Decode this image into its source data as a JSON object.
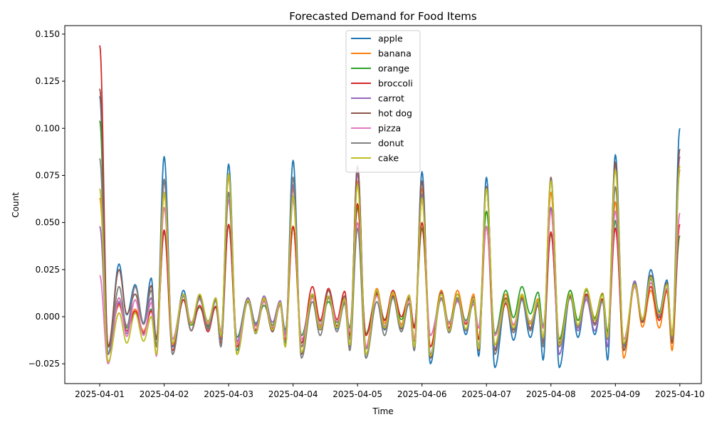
{
  "chart_data": {
    "type": "line",
    "title": "Forecasted Demand for Food Items",
    "xlabel": "Time",
    "ylabel": "Count",
    "xlim": [
      "2025-03-31T11:00",
      "2025-04-10T08:00"
    ],
    "ylim": [
      -0.0355,
      0.1545
    ],
    "x_ticks": [
      "2025-04-01",
      "2025-04-02",
      "2025-04-03",
      "2025-04-04",
      "2025-04-05",
      "2025-04-06",
      "2025-04-07",
      "2025-04-08",
      "2025-04-09",
      "2025-04-10"
    ],
    "y_ticks": [
      -0.025,
      0.0,
      0.025,
      0.05,
      0.075,
      0.1,
      0.125,
      0.15
    ],
    "y_tick_labels": [
      "−0.025",
      "0.000",
      "0.025",
      "0.050",
      "0.075",
      "0.100",
      "0.125",
      "0.150"
    ],
    "grid": false,
    "legend_position": "top-center",
    "series": [
      {
        "name": "apple",
        "color": "#1f77b4",
        "start": 0.117,
        "end": 0.1,
        "peaks": [
          0.085,
          0.081,
          0.083,
          0.08,
          0.077,
          0.074,
          0.073,
          0.086
        ],
        "mins": [
          -0.02,
          -0.016,
          -0.018,
          -0.02,
          -0.022,
          -0.025,
          -0.027,
          -0.027,
          -0.016
        ],
        "m1": [
          0.028,
          0.014,
          0.009,
          0.012,
          0.014,
          0.014,
          0.008,
          0.011,
          0.018
        ],
        "m2": [
          0.017,
          0.01,
          0.01,
          0.011,
          0.01,
          0.01,
          0.009,
          0.012,
          0.025
        ]
      },
      {
        "name": "banana",
        "color": "#ff7f0e",
        "start": 0.063,
        "end": 0.055,
        "peaks": [
          0.065,
          0.074,
          0.068,
          0.072,
          0.068,
          0.069,
          0.066,
          0.061
        ],
        "mins": [
          -0.015,
          -0.015,
          -0.014,
          -0.016,
          -0.016,
          -0.016,
          -0.015,
          -0.012,
          -0.022
        ],
        "m1": [
          0.006,
          0.012,
          0.01,
          0.012,
          0.015,
          0.014,
          0.012,
          0.014,
          0.017
        ],
        "m2": [
          0.004,
          0.011,
          0.009,
          0.01,
          0.012,
          0.014,
          0.011,
          0.015,
          0.014
        ]
      },
      {
        "name": "orange",
        "color": "#2ca02c",
        "start": 0.104,
        "end": 0.043,
        "peaks": [
          0.045,
          0.049,
          0.048,
          0.058,
          0.047,
          0.056,
          0.044,
          0.051
        ],
        "mins": [
          -0.016,
          -0.012,
          -0.011,
          -0.01,
          -0.009,
          -0.01,
          -0.009,
          -0.012,
          -0.015
        ],
        "m1": [
          0.01,
          0.009,
          0.01,
          0.011,
          0.012,
          0.01,
          0.014,
          0.014,
          0.016
        ],
        "m2": [
          0.002,
          0.005,
          0.006,
          0.008,
          0.01,
          0.01,
          0.016,
          0.014,
          0.018
        ]
      },
      {
        "name": "broccoli",
        "color": "#d62728",
        "start": 0.144,
        "end": 0.049,
        "peaks": [
          0.046,
          0.049,
          0.048,
          0.06,
          0.05,
          0.048,
          0.045,
          0.047
        ],
        "mins": [
          -0.016,
          -0.018,
          -0.016,
          -0.014,
          -0.01,
          -0.016,
          -0.018,
          -0.015,
          -0.016
        ],
        "m1": [
          0.007,
          0.009,
          0.008,
          0.016,
          0.012,
          0.01,
          0.007,
          0.011,
          0.016
        ],
        "m2": [
          0.003,
          0.006,
          0.008,
          0.015,
          0.014,
          0.012,
          0.009,
          0.012,
          0.016
        ]
      },
      {
        "name": "carrot",
        "color": "#9467bd",
        "start": 0.048,
        "end": 0.085,
        "peaks": [
          0.072,
          0.066,
          0.07,
          0.076,
          0.072,
          0.069,
          0.058,
          0.081
        ],
        "mins": [
          -0.02,
          -0.012,
          -0.013,
          -0.016,
          -0.017,
          -0.02,
          -0.017,
          -0.02,
          -0.016
        ],
        "m1": [
          0.008,
          0.011,
          0.01,
          0.01,
          0.013,
          0.012,
          0.009,
          0.011,
          0.019
        ],
        "m2": [
          0.016,
          0.011,
          0.011,
          0.01,
          0.011,
          0.009,
          0.009,
          0.009,
          0.02
        ]
      },
      {
        "name": "hot dog",
        "color": "#8c564b",
        "start": 0.121,
        "end": 0.089,
        "peaks": [
          0.073,
          0.066,
          0.074,
          0.08,
          0.072,
          0.069,
          0.074,
          0.082
        ],
        "mins": [
          -0.016,
          -0.02,
          -0.02,
          -0.02,
          -0.02,
          -0.022,
          -0.018,
          -0.014,
          -0.018
        ],
        "m1": [
          0.025,
          0.011,
          0.009,
          0.012,
          0.013,
          0.013,
          0.01,
          0.011,
          0.018
        ],
        "m2": [
          0.012,
          0.011,
          0.008,
          0.014,
          0.011,
          0.012,
          0.01,
          0.01,
          0.022
        ]
      },
      {
        "name": "pizza",
        "color": "#e377c2",
        "start": 0.022,
        "end": 0.055,
        "peaks": [
          0.058,
          0.062,
          0.062,
          0.05,
          0.062,
          0.048,
          0.056,
          0.056
        ],
        "mins": [
          -0.025,
          -0.012,
          -0.015,
          -0.012,
          -0.016,
          -0.01,
          -0.01,
          -0.015,
          -0.012
        ],
        "m1": [
          0.01,
          0.012,
          0.008,
          0.01,
          0.011,
          0.009,
          0.008,
          0.01,
          0.016
        ],
        "m2": [
          0.009,
          0.009,
          0.008,
          0.011,
          0.01,
          0.008,
          0.009,
          0.01,
          0.018
        ]
      },
      {
        "name": "donut",
        "color": "#7f7f7f",
        "start": 0.084,
        "end": 0.078,
        "peaks": [
          0.073,
          0.066,
          0.074,
          0.047,
          0.065,
          0.068,
          0.073,
          0.069
        ],
        "mins": [
          -0.02,
          -0.02,
          -0.02,
          -0.022,
          -0.022,
          -0.021,
          -0.02,
          -0.016,
          -0.016
        ],
        "m1": [
          0.016,
          0.011,
          0.008,
          0.008,
          0.008,
          0.01,
          0.009,
          0.01,
          0.018
        ],
        "m2": [
          0.016,
          0.01,
          0.01,
          0.01,
          0.01,
          0.01,
          0.009,
          0.011,
          0.02
        ]
      },
      {
        "name": "cake",
        "color": "#bcbd22",
        "start": 0.068,
        "end": 0.08,
        "peaks": [
          0.066,
          0.076,
          0.064,
          0.07,
          0.063,
          0.068,
          0.072,
          0.078
        ],
        "mins": [
          -0.024,
          -0.014,
          -0.02,
          -0.019,
          -0.02,
          -0.021,
          -0.015,
          -0.015,
          -0.014
        ],
        "m1": [
          0.002,
          0.012,
          0.009,
          0.012,
          0.014,
          0.012,
          0.009,
          0.012,
          0.017
        ],
        "m2": [
          0.002,
          0.012,
          0.01,
          0.011,
          0.013,
          0.012,
          0.012,
          0.015,
          0.021
        ]
      }
    ]
  }
}
